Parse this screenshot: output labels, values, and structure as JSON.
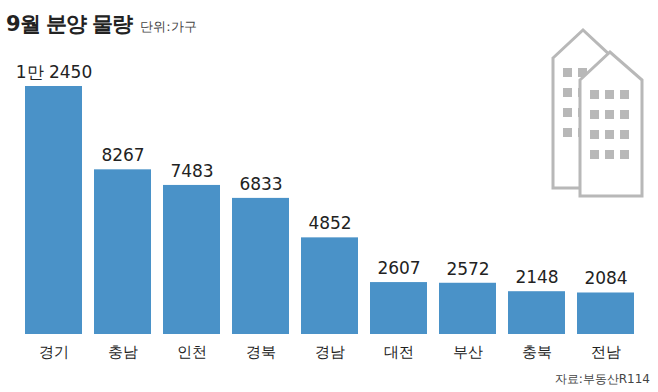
{
  "chart_data": {
    "type": "bar",
    "title": "9월 분양 물량",
    "subtitle": "단위:가구",
    "caption": "자료:부동산R114",
    "categories": [
      "경기",
      "충남",
      "인천",
      "경북",
      "경남",
      "대전",
      "부산",
      "충북",
      "전남"
    ],
    "values": [
      12450,
      8267,
      7483,
      6833,
      4852,
      2607,
      2572,
      2148,
      2084
    ],
    "value_labels": [
      "1만 2450",
      "8267",
      "7483",
      "6833",
      "4852",
      "2607",
      "2572",
      "2148",
      "2084"
    ],
    "color": "#4a92c8",
    "ylim": [
      0,
      12450
    ],
    "data_labels": true,
    "tick_labels": "x",
    "grid": false
  }
}
